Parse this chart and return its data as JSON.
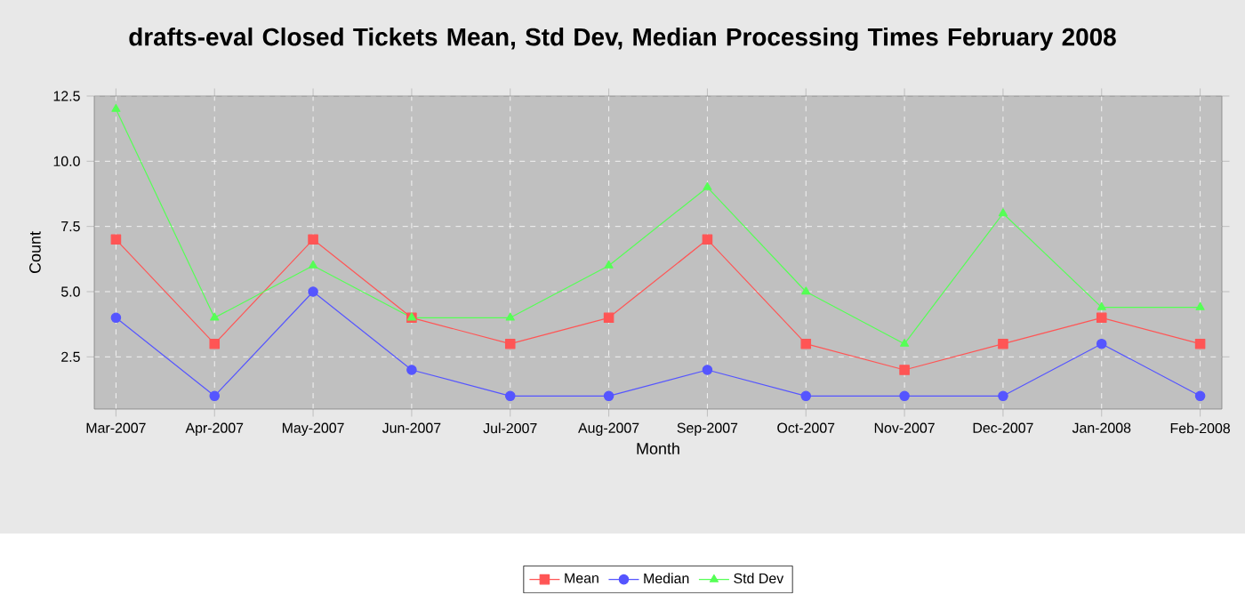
{
  "chart_data": {
    "type": "line",
    "title": "drafts-eval Closed Tickets Mean, Std Dev, Median Processing Times February 2008",
    "xlabel": "Month",
    "ylabel": "Count",
    "categories": [
      "Mar-2007",
      "Apr-2007",
      "May-2007",
      "Jun-2007",
      "Jul-2007",
      "Aug-2007",
      "Sep-2007",
      "Oct-2007",
      "Nov-2007",
      "Dec-2007",
      "Jan-2008",
      "Feb-2008"
    ],
    "series": [
      {
        "name": "Mean",
        "color": "#ff5555",
        "marker": "square",
        "values": [
          7,
          3,
          7,
          4,
          3,
          4,
          7,
          3,
          2,
          3,
          4,
          3
        ]
      },
      {
        "name": "Median",
        "color": "#5555ff",
        "marker": "circle",
        "values": [
          4,
          1,
          5,
          2,
          1,
          1,
          2,
          1,
          1,
          1,
          3,
          1
        ]
      },
      {
        "name": "Std Dev",
        "color": "#55ff55",
        "marker": "triangle",
        "values": [
          12,
          4,
          6,
          4,
          4,
          6,
          9,
          5,
          3,
          8,
          4.4,
          4.4
        ]
      }
    ],
    "ylim": [
      0.5,
      12.5
    ],
    "yticks": [
      2.5,
      {
        "value": 5,
        "label": "5.0"
      },
      {
        "value": 7.5,
        "label": "7.5"
      },
      {
        "value": 10,
        "label": "10.0"
      },
      12.5
    ],
    "grid": true,
    "legend": "bottom",
    "line_style": "solid"
  }
}
